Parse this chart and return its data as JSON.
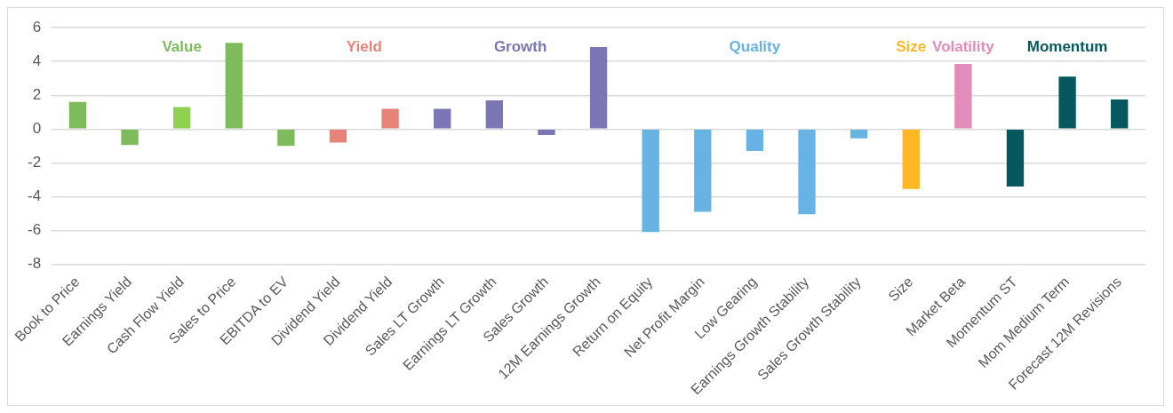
{
  "chart_data": {
    "type": "bar",
    "categories": [
      "Book to Price",
      "Earnings Yield",
      "Cash Flow Yield",
      "Sales to Price",
      "EBITDA to EV",
      "Dividend Yield",
      "Dividend Yield",
      "Sales LT Growth",
      "Earnings LT Growth",
      "Sales Growth",
      "12M Earnings Growth",
      "Return on Equity",
      "Net Profit Margin",
      "Low Gearing",
      "Earnings Growth Stability",
      "Sales Growth Stability",
      "Size",
      "Market Beta",
      "Momentum ST",
      "Mom Medium Term",
      "Forecast 12M Revisions"
    ],
    "values": [
      1.6,
      -0.95,
      1.3,
      5.1,
      -1.0,
      -0.8,
      1.2,
      1.2,
      1.7,
      -0.35,
      4.85,
      -6.1,
      -4.9,
      -1.3,
      -5.05,
      -0.55,
      -3.55,
      3.85,
      -3.4,
      3.1,
      1.75
    ],
    "colors": [
      "#7dbb5c",
      "#7dbb5c",
      "#92d050",
      "#7dbb5c",
      "#7dbb5c",
      "#e8837a",
      "#e8837a",
      "#7b77b6",
      "#7b77b6",
      "#7b77b6",
      "#7b77b6",
      "#67b3e3",
      "#67b3e3",
      "#67b3e3",
      "#67b3e3",
      "#67b3e3",
      "#fdb823",
      "#e48cb9",
      "#06585e",
      "#06585e",
      "#06585e"
    ],
    "ylim": [
      -8,
      6
    ],
    "yticks": [
      -8,
      -6,
      -4,
      -2,
      0,
      2,
      4,
      6
    ],
    "grid": "y",
    "legend": false,
    "annotations": [
      "Value",
      "Yield",
      "Growth",
      "Quality",
      "Size",
      "Volatility",
      "Momentum"
    ]
  }
}
